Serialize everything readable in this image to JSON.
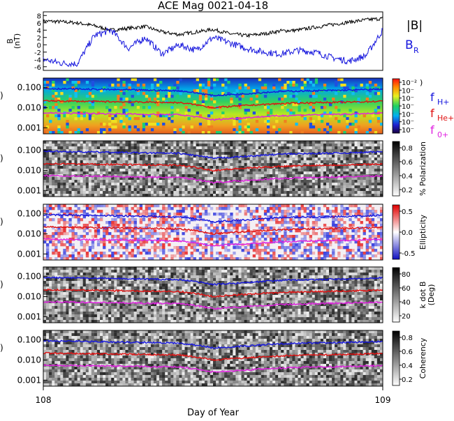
{
  "title": "ACE Mag 0021-04-18",
  "xlabel": "Day of Year",
  "x_ticks": [
    "108",
    "109"
  ],
  "colors": {
    "black": "#000000",
    "blue": "#1515dd",
    "red": "#e01010",
    "magenta": "#e020e0"
  },
  "legend_top": {
    "btotal": "|B|",
    "br_main": "B",
    "br_sub": "R"
  },
  "legend_freq": {
    "h_main": "f",
    "h_sub": "H+",
    "he_main": "f",
    "he_sub": "He+",
    "o_main": "f",
    "o_sub": "0+"
  },
  "colorbars": {
    "power": {
      "ticks": [
        "10⁻²",
        "10⁻",
        "10⁻",
        "10⁻",
        "10⁻",
        "10⁻",
        "10⁻"
      ],
      "partial_label": ")"
    },
    "polarization": {
      "label": "% Polarization",
      "ticks": [
        "0.8",
        "0.6",
        "0.4",
        "0.2"
      ]
    },
    "ellipticity": {
      "label": "Ellipticity",
      "ticks": [
        "0.5",
        "0.0",
        "-0.5"
      ]
    },
    "kdotb": {
      "label": "k dot B",
      "label2": "(Deg)",
      "ticks": [
        "80",
        "60",
        "40",
        "20"
      ]
    },
    "coherency": {
      "label": "Coherency",
      "ticks": [
        "0.8",
        "0.6",
        "0.4",
        "0.2"
      ]
    }
  },
  "chart_data": [
    {
      "type": "line",
      "panel": "magnetic_field",
      "ylabel": "B",
      "ylabel_unit": "(nT)",
      "y_ticks": [
        "8",
        "6",
        "4",
        "2",
        "0",
        "-2",
        "-4",
        "-6"
      ],
      "ylim": [
        -7,
        9
      ],
      "xlim": [
        108,
        109
      ],
      "x": [
        108.0,
        108.05,
        108.1,
        108.15,
        108.2,
        108.25,
        108.3,
        108.35,
        108.4,
        108.45,
        108.5,
        108.55,
        108.6,
        108.65,
        108.7,
        108.75,
        108.8,
        108.85,
        108.9,
        108.95,
        109.0
      ],
      "series": [
        {
          "name": "|B|",
          "values": [
            6.5,
            6.3,
            6.0,
            5.2,
            4.0,
            4.5,
            5.0,
            3.5,
            2.8,
            3.5,
            4.2,
            3.0,
            2.5,
            3.0,
            3.8,
            4.0,
            4.8,
            5.5,
            6.2,
            6.8,
            7.2
          ]
        },
        {
          "name": "B_R",
          "values": [
            -4.0,
            -5.0,
            -5.2,
            2.5,
            4.0,
            -1.0,
            2.0,
            -2.5,
            0.0,
            -1.5,
            2.0,
            0.5,
            -1.0,
            -2.0,
            -2.5,
            -1.5,
            -2.0,
            -3.5,
            -4.5,
            -3.0,
            4.0
          ]
        }
      ]
    },
    {
      "type": "heatmap",
      "panel": "power_spectrum",
      "y_ticks": [
        "0.100",
        "0.010",
        "0.001"
      ],
      "y_scale": "log",
      "ylim": [
        0.0005,
        0.3
      ],
      "xlim": [
        108,
        109
      ],
      "x": [
        108.0,
        108.1,
        108.2,
        108.3,
        108.4,
        108.5,
        108.6,
        108.7,
        108.8,
        108.9,
        109.0
      ],
      "series": [
        {
          "name": "f_H+",
          "values": [
            0.09,
            0.085,
            0.08,
            0.075,
            0.07,
            0.04,
            0.05,
            0.065,
            0.07,
            0.075,
            0.085
          ]
        },
        {
          "name": "f_He+",
          "values": [
            0.022,
            0.021,
            0.02,
            0.019,
            0.018,
            0.01,
            0.013,
            0.016,
            0.018,
            0.019,
            0.021
          ]
        },
        {
          "name": "f_0+",
          "values": [
            0.0055,
            0.0052,
            0.005,
            0.0047,
            0.0045,
            0.0025,
            0.0032,
            0.004,
            0.0045,
            0.0048,
            0.0053
          ]
        }
      ]
    },
    {
      "type": "heatmap",
      "panel": "polarization",
      "y_ticks": [
        "0.100",
        "0.010",
        "0.001"
      ],
      "y_scale": "log",
      "ylim": [
        0.0005,
        0.3
      ],
      "xlim": [
        108,
        109
      ]
    },
    {
      "type": "heatmap",
      "panel": "ellipticity",
      "y_ticks": [
        "0.100",
        "0.010",
        "0.001"
      ],
      "y_scale": "log",
      "ylim": [
        0.0005,
        0.3
      ],
      "xlim": [
        108,
        109
      ]
    },
    {
      "type": "heatmap",
      "panel": "k_dot_b",
      "y_ticks": [
        "0.100",
        "0.010",
        "0.001"
      ],
      "y_scale": "log",
      "ylim": [
        0.0005,
        0.3
      ],
      "xlim": [
        108,
        109
      ]
    },
    {
      "type": "heatmap",
      "panel": "coherency",
      "y_ticks": [
        "0.100",
        "0.010",
        "0.001"
      ],
      "y_scale": "log",
      "ylim": [
        0.0005,
        0.3
      ],
      "xlim": [
        108,
        109
      ]
    }
  ]
}
